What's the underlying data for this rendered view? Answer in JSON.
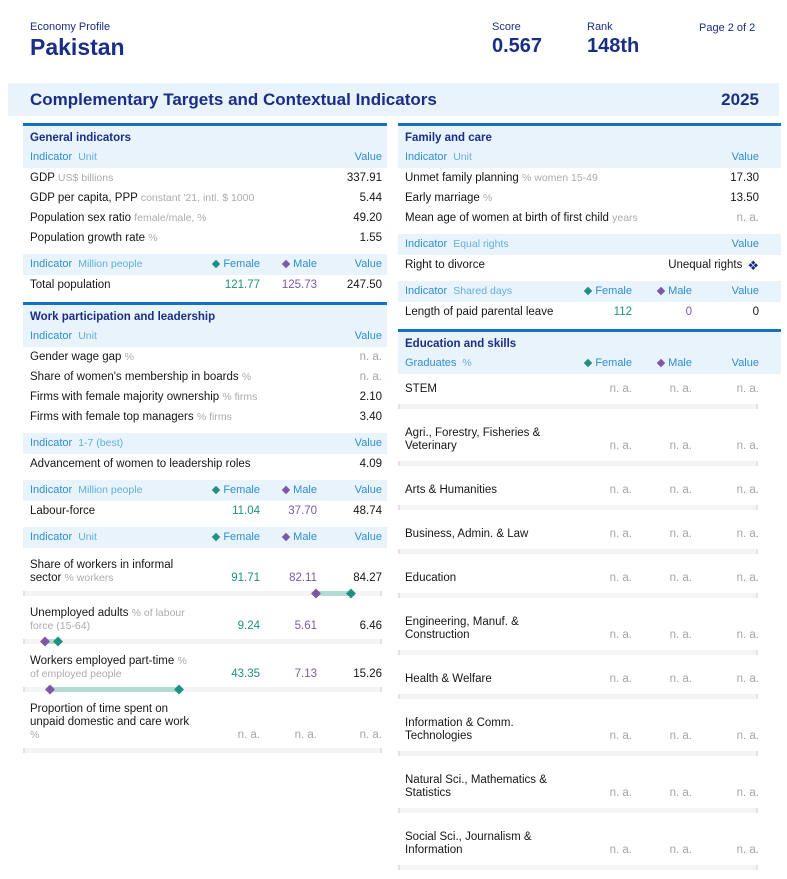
{
  "header": {
    "eyebrow": "Economy Profile",
    "title": "Pakistan",
    "score_label": "Score",
    "score_value": "0.567",
    "rank_label": "Rank",
    "rank_value": "148th",
    "page_label": "Page 2 of 2"
  },
  "banner": {
    "title": "Complementary Targets and Contextual Indicators",
    "year": "2025"
  },
  "legend": {
    "female": "Female",
    "male": "Male"
  },
  "colors": {
    "navy": "#1a2e85",
    "section_border_blue": "#1472bf",
    "indicator_blue": "#2d8fd0",
    "unit_light_blue": "#62aede",
    "header_bg": "#e9f3fb",
    "female_teal": "#1f9180",
    "male_purple": "#7e57a9",
    "band_teal": "#b2dcd3",
    "na_gray": "#a5a5a5"
  },
  "left": {
    "general": {
      "title": "General indicators",
      "head_unit": {
        "ind": "Indicator",
        "unit": "Unit",
        "value": "Value"
      },
      "rows": [
        {
          "label": "GDP",
          "unit": "US$ billions",
          "value": "337.91"
        },
        {
          "label": "GDP per capita, PPP",
          "unit": "constant '21, intl. $ 1000",
          "value": "5.44"
        },
        {
          "label": "Population sex ratio",
          "unit": "female/male, %",
          "value": "49.20"
        },
        {
          "label": "Population growth rate",
          "unit": "%",
          "value": "1.55"
        }
      ],
      "head_population": {
        "ind": "Indicator",
        "unit": "Million people",
        "value": "Value"
      },
      "population_row": {
        "label": "Total population",
        "female": "121.77",
        "male": "125.73",
        "value": "247.50"
      }
    },
    "work": {
      "title": "Work participation and leadership",
      "head_unit": {
        "ind": "Indicator",
        "unit": "Unit",
        "value": "Value"
      },
      "rows": [
        {
          "label": "Gender wage gap",
          "unit": "%",
          "value": "n. a."
        },
        {
          "label": "Share of women's membership in boards",
          "unit": "%",
          "value": "n. a."
        },
        {
          "label": "Firms with female majority ownership",
          "unit": "% firms",
          "value": "2.10"
        },
        {
          "label": "Firms with female top managers",
          "unit": "% firms",
          "value": "3.40"
        }
      ],
      "head_best": {
        "ind": "Indicator",
        "unit": "1-7 (best)",
        "value": "Value"
      },
      "leadership_row": {
        "label": "Advancement of women to leadership roles",
        "value": "4.09"
      },
      "head_million": {
        "ind": "Indicator",
        "unit": "Million people",
        "value": "Value"
      },
      "labour_row": {
        "label": "Labour-force",
        "female": "11.04",
        "male": "37.70",
        "value": "48.74"
      },
      "head_fmv": {
        "ind": "Indicator",
        "unit": "Unit",
        "value": "Value"
      },
      "chart_rows": [
        {
          "label": "Share of workers in informal sector",
          "unit": "% workers",
          "female": "91.71",
          "male": "82.11",
          "value": "84.27",
          "chart": {
            "f": 91.71,
            "m": 82.11
          }
        },
        {
          "label": "Unemployed adults",
          "unit": "% of labour force (15-64)",
          "female": "9.24",
          "male": "5.61",
          "value": "6.46",
          "chart": {
            "f": 9.24,
            "m": 5.61
          }
        },
        {
          "label": "Workers employed part-time",
          "unit": "% of employed people",
          "female": "43.35",
          "male": "7.13",
          "value": "15.26",
          "chart": {
            "f": 43.35,
            "m": 7.13
          }
        },
        {
          "label": "Proportion of time spent on unpaid domestic and care work",
          "unit": "%",
          "female": "n. a.",
          "male": "n. a.",
          "value": "n. a."
        }
      ]
    }
  },
  "right": {
    "family": {
      "title": "Family and care",
      "head_unit": {
        "ind": "Indicator",
        "unit": "Unit",
        "value": "Value"
      },
      "rows": [
        {
          "label": "Unmet family planning",
          "unit": "% women 15-49",
          "value": "17.30"
        },
        {
          "label": "Early marriage",
          "unit": "%",
          "value": "13.50"
        },
        {
          "label": "Mean age of women at birth of first child",
          "unit": "years",
          "value": "n. a."
        }
      ],
      "head_rights": {
        "ind": "Indicator",
        "unit": "Equal rights",
        "value": "Value"
      },
      "divorce_row": {
        "label": "Right to divorce",
        "value": "Unequal rights",
        "icon": "❖"
      },
      "head_shared": {
        "ind": "Indicator",
        "unit": "Shared days",
        "value": "Value"
      },
      "leave_row": {
        "label": "Length of paid parental leave",
        "female": "112",
        "male": "0",
        "value": "0"
      }
    },
    "education": {
      "title": "Education and skills",
      "head": {
        "ind": "Graduates",
        "unit": "%",
        "value": "Value"
      },
      "rows": [
        {
          "label": "STEM",
          "female": "n. a.",
          "male": "n. a.",
          "value": "n. a."
        },
        {
          "label": "Agri., Forestry, Fisheries & Veterinary",
          "female": "n. a.",
          "male": "n. a.",
          "value": "n. a."
        },
        {
          "label": "Arts & Humanities",
          "female": "n. a.",
          "male": "n. a.",
          "value": "n. a."
        },
        {
          "label": "Business, Admin. & Law",
          "female": "n. a.",
          "male": "n. a.",
          "value": "n. a."
        },
        {
          "label": "Education",
          "female": "n. a.",
          "male": "n. a.",
          "value": "n. a."
        },
        {
          "label": "Engineering, Manuf. & Construction",
          "female": "n. a.",
          "male": "n. a.",
          "value": "n. a."
        },
        {
          "label": "Health & Welfare",
          "female": "n. a.",
          "male": "n. a.",
          "value": "n. a."
        },
        {
          "label": "Information & Comm. Technologies",
          "female": "n. a.",
          "male": "n. a.",
          "value": "n. a."
        },
        {
          "label": "Natural Sci., Mathematics & Statistics",
          "female": "n. a.",
          "male": "n. a.",
          "value": "n. a."
        },
        {
          "label": "Social Sci., Journalism & Information",
          "female": "n. a.",
          "male": "n. a.",
          "value": "n. a."
        }
      ]
    }
  }
}
